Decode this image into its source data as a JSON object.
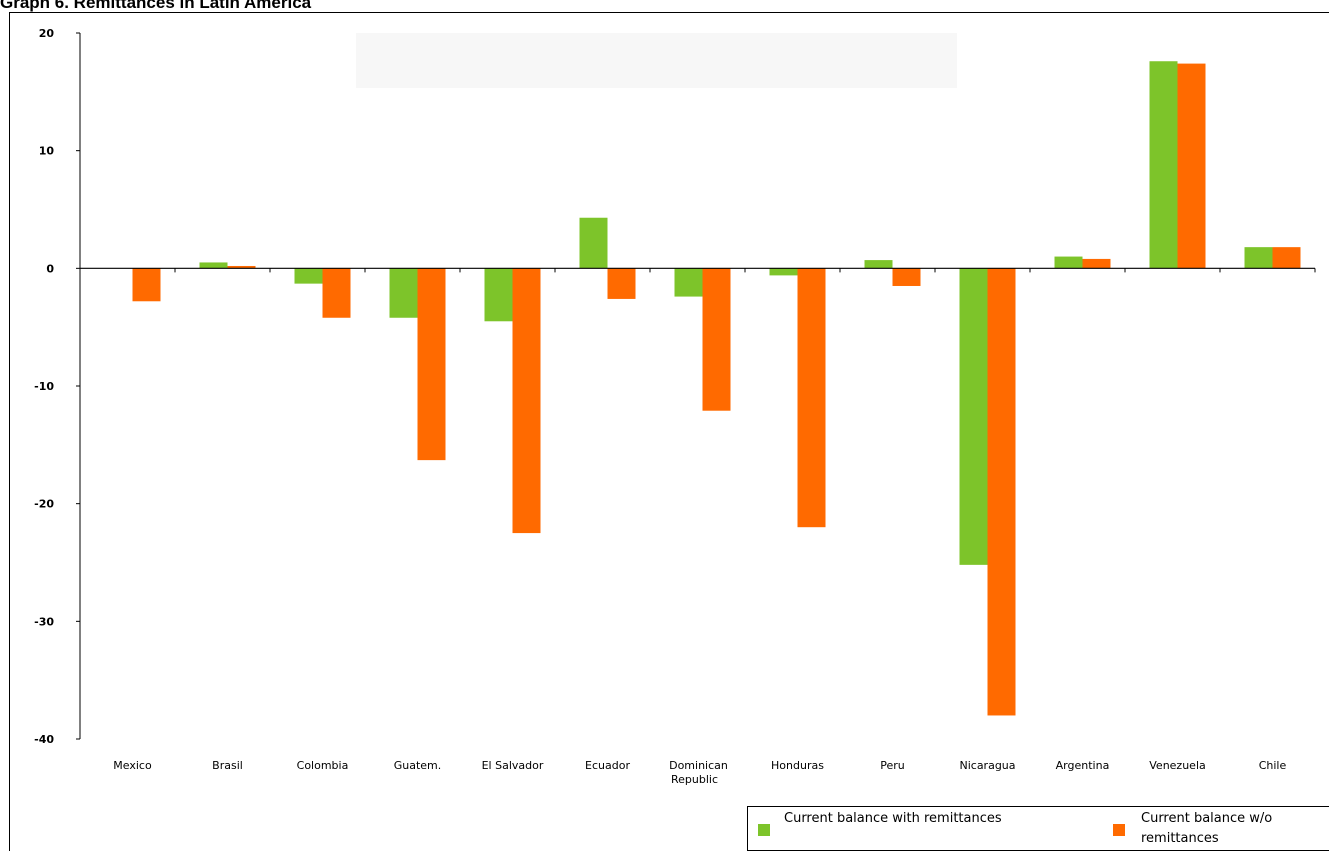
{
  "page_title": "Graph 6. Remittances in Latin America",
  "colors": {
    "with": "#7dc42a",
    "without": "#ff6a00",
    "axis": "#000000"
  },
  "chart_data": {
    "type": "bar",
    "title": "",
    "xlabel": "",
    "ylabel": "",
    "ylim": [
      -40,
      20
    ],
    "yticks": [
      "20",
      "10",
      "0",
      "-10",
      "-20",
      "-30",
      "-40"
    ],
    "ytick_values": [
      20,
      10,
      0,
      -10,
      -20,
      -30,
      -40
    ],
    "categories": [
      "Mexico",
      "Brasil",
      "Colombia",
      "Guatem.",
      "El Salvador",
      "Ecuador",
      "Dominican Republic",
      "Honduras",
      "Peru",
      "Nicaragua",
      "Argentina",
      "Venezuela",
      "Chile"
    ],
    "series": [
      {
        "name": "Current balance with remittances",
        "values": [
          0,
          0.5,
          -1.3,
          -4.2,
          -4.5,
          4.3,
          -2.4,
          -0.6,
          0.7,
          -25.2,
          1.0,
          17.6,
          1.8
        ]
      },
      {
        "name": "Current balance w/o remittances",
        "values": [
          -2.8,
          0.2,
          -4.2,
          -16.3,
          -22.5,
          -2.6,
          -12.1,
          -22.0,
          -1.5,
          -38.0,
          0.8,
          17.4,
          1.8
        ]
      }
    ],
    "legend_position": "bottom-right",
    "grid": false
  }
}
